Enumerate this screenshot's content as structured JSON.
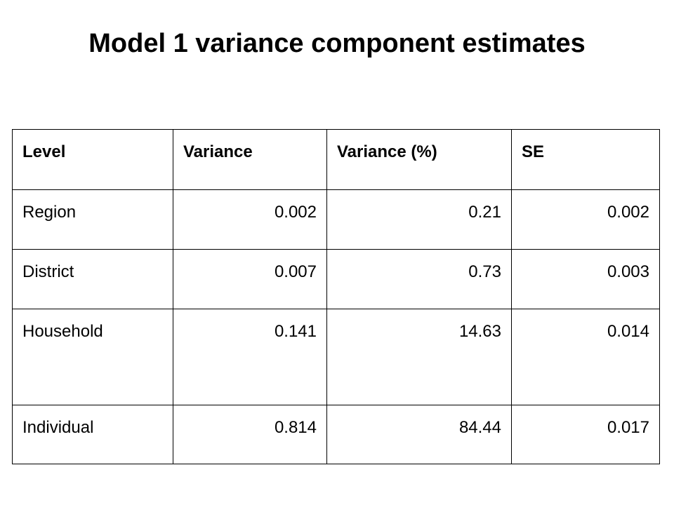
{
  "title": "Model 1 variance component estimates",
  "table": {
    "headers": [
      "Level",
      "Variance",
      "Variance (%)",
      "SE"
    ],
    "rows": [
      {
        "level": "Region",
        "variance": "0.002",
        "variance_pct": "0.21",
        "se": "0.002"
      },
      {
        "level": "District",
        "variance": "0.007",
        "variance_pct": "0.73",
        "se": "0.003"
      },
      {
        "level": "Household",
        "variance": "0.141",
        "variance_pct": "14.63",
        "se": "0.014"
      },
      {
        "level": "Individual",
        "variance": "0.814",
        "variance_pct": "84.44",
        "se": "0.017"
      }
    ]
  }
}
